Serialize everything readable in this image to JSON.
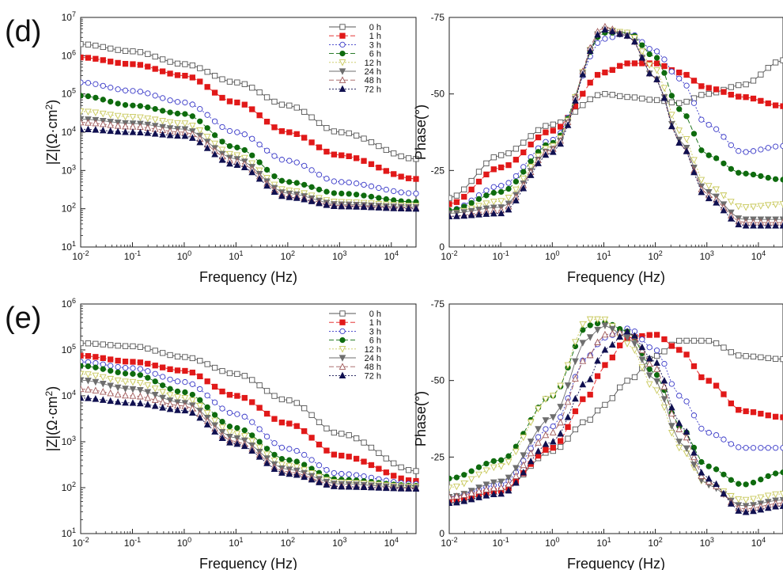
{
  "chart_data": [
    {
      "panel": "(d)",
      "id": "d-bode",
      "type": "scatter",
      "log_x": true,
      "log_y": true,
      "xlabel": "Frequency (Hz)",
      "ylabel": "|Z|(Ω·cm2)",
      "xlim": [
        0.01,
        30000
      ],
      "ylim": [
        10,
        10000000
      ],
      "x_ticks": [
        "10-2",
        "10-1",
        "100",
        "101",
        "102",
        "103",
        "104"
      ],
      "y_ticks": [
        "101",
        "102",
        "103",
        "104",
        "105",
        "106",
        "107"
      ],
      "legend_position": "top-right",
      "x": [
        0.01,
        0.1,
        1,
        10,
        100,
        1000,
        30000
      ],
      "series": [
        {
          "name": "0 h",
          "values": [
            2000000,
            1300000,
            600000,
            200000,
            50000,
            10000,
            2000
          ]
        },
        {
          "name": "1 h",
          "values": [
            900000,
            600000,
            300000,
            60000,
            10000,
            2500,
            600
          ]
        },
        {
          "name": "3 h",
          "values": [
            200000,
            120000,
            60000,
            10000,
            1800,
            500,
            250
          ]
        },
        {
          "name": "6 h",
          "values": [
            90000,
            50000,
            30000,
            4000,
            500,
            250,
            150
          ]
        },
        {
          "name": "12 h",
          "values": [
            35000,
            25000,
            17000,
            2500,
            300,
            150,
            120
          ]
        },
        {
          "name": "24 h",
          "values": [
            22000,
            17000,
            12000,
            2000,
            250,
            130,
            110
          ]
        },
        {
          "name": "48 h",
          "values": [
            18000,
            14000,
            10000,
            1700,
            220,
            120,
            105
          ]
        },
        {
          "name": "72 h",
          "values": [
            12000,
            10000,
            8000,
            1400,
            200,
            115,
            100
          ]
        }
      ]
    },
    {
      "panel": "",
      "id": "d-phase",
      "type": "scatter",
      "log_x": true,
      "xlabel": "Frequency (Hz)",
      "ylabel": "Phase(°)",
      "xlim": [
        0.01,
        30000
      ],
      "ylim": [
        0,
        -75
      ],
      "x_ticks": [
        "10-2",
        "10-1",
        "100",
        "101",
        "102",
        "103",
        "104"
      ],
      "y_ticks": [
        "0",
        "-25",
        "-50",
        "-75"
      ],
      "x": [
        0.01,
        0.1,
        1,
        10,
        30,
        100,
        300,
        1000,
        5000,
        30000
      ],
      "series": [
        {
          "name": "0 h",
          "values": [
            -16,
            -30,
            -40,
            -50,
            -49,
            -48,
            -47,
            -50,
            -53,
            -61
          ]
        },
        {
          "name": "1 h",
          "values": [
            -14,
            -26,
            -38,
            -57,
            -60,
            -60,
            -57,
            -52,
            -49,
            -46
          ]
        },
        {
          "name": "3 h",
          "values": [
            -12,
            -20,
            -35,
            -68,
            -70,
            -64,
            -55,
            -40,
            -31,
            -33
          ]
        },
        {
          "name": "6 h",
          "values": [
            -12,
            -18,
            -34,
            -70,
            -70,
            -62,
            -45,
            -30,
            -24,
            -22
          ]
        },
        {
          "name": "12 h",
          "values": [
            -11,
            -15,
            -33,
            -71,
            -70,
            -58,
            -38,
            -20,
            -13,
            -14
          ]
        },
        {
          "name": "24 h",
          "values": [
            -11,
            -13,
            -32,
            -71,
            -69,
            -55,
            -35,
            -18,
            -9,
            -9
          ]
        },
        {
          "name": "48 h",
          "values": [
            -10,
            -12,
            -32,
            -72,
            -69,
            -55,
            -34,
            -17,
            -8,
            -8
          ]
        },
        {
          "name": "72 h",
          "values": [
            -10,
            -11,
            -31,
            -71,
            -69,
            -55,
            -34,
            -16,
            -7,
            -7
          ]
        }
      ]
    },
    {
      "panel": "(e)",
      "id": "e-bode",
      "type": "scatter",
      "log_x": true,
      "log_y": true,
      "xlabel": "Frequency (Hz)",
      "ylabel": "|Z|(Ω·cm2)",
      "xlim": [
        0.01,
        30000
      ],
      "ylim": [
        10,
        1000000
      ],
      "x_ticks": [
        "10-2",
        "10-1",
        "100",
        "101",
        "102",
        "103",
        "104"
      ],
      "y_ticks": [
        "101",
        "102",
        "103",
        "104",
        "105",
        "106"
      ],
      "legend_position": "top-right",
      "x": [
        0.01,
        0.1,
        1,
        10,
        100,
        1000,
        30000
      ],
      "series": [
        {
          "name": "0 h",
          "values": [
            140000,
            120000,
            70000,
            30000,
            8000,
            1500,
            230
          ]
        },
        {
          "name": "1 h",
          "values": [
            75000,
            55000,
            35000,
            10000,
            2500,
            500,
            140
          ]
        },
        {
          "name": "3 h",
          "values": [
            55000,
            40000,
            20000,
            4000,
            700,
            200,
            120
          ]
        },
        {
          "name": "6 h",
          "values": [
            45000,
            30000,
            12000,
            2000,
            400,
            150,
            110
          ]
        },
        {
          "name": "12 h",
          "values": [
            30000,
            20000,
            9000,
            1500,
            300,
            130,
            105
          ]
        },
        {
          "name": "24 h",
          "values": [
            22000,
            14000,
            7000,
            1200,
            250,
            120,
            100
          ]
        },
        {
          "name": "48 h",
          "values": [
            14000,
            10000,
            6000,
            1000,
            220,
            110,
            98
          ]
        },
        {
          "name": "72 h",
          "values": [
            9000,
            7000,
            4800,
            900,
            200,
            105,
            95
          ]
        }
      ]
    },
    {
      "panel": "",
      "id": "e-phase",
      "type": "scatter",
      "log_x": true,
      "xlabel": "Frequency (Hz)",
      "ylabel": "Phase(°)",
      "xlim": [
        0.01,
        30000
      ],
      "ylim": [
        0,
        -75
      ],
      "x_ticks": [
        "10-2",
        "10-1",
        "100",
        "101",
        "102",
        "103",
        "104"
      ],
      "y_ticks": [
        "0",
        "-25",
        "-50",
        "-75"
      ],
      "x": [
        0.01,
        0.1,
        1,
        5,
        10,
        30,
        100,
        300,
        1000,
        5000,
        30000
      ],
      "series": [
        {
          "name": "0 h",
          "values": [
            -10,
            -14,
            -27,
            -37,
            -42,
            -50,
            -58,
            -63,
            -63,
            -58,
            -57
          ]
        },
        {
          "name": "1 h",
          "values": [
            -11,
            -14,
            -28,
            -45,
            -55,
            -64,
            -65,
            -60,
            -50,
            -40,
            -38
          ]
        },
        {
          "name": "3 h",
          "values": [
            -12,
            -16,
            -35,
            -58,
            -64,
            -67,
            -60,
            -45,
            -33,
            -28,
            -28
          ]
        },
        {
          "name": "6 h",
          "values": [
            -18,
            -24,
            -45,
            -68,
            -69,
            -66,
            -52,
            -35,
            -22,
            -16,
            -20
          ]
        },
        {
          "name": "12 h",
          "values": [
            -15,
            -22,
            -45,
            -70,
            -70,
            -62,
            -47,
            -28,
            -16,
            -11,
            -13
          ]
        },
        {
          "name": "24 h",
          "values": [
            -12,
            -17,
            -38,
            -64,
            -68,
            -64,
            -50,
            -30,
            -16,
            -9,
            -11
          ]
        },
        {
          "name": "48 h",
          "values": [
            -12,
            -15,
            -33,
            -58,
            -65,
            -66,
            -54,
            -34,
            -17,
            -8,
            -10
          ]
        },
        {
          "name": "72 h",
          "values": [
            -10,
            -13,
            -30,
            -50,
            -60,
            -66,
            -56,
            -36,
            -18,
            -7,
            -9
          ]
        }
      ]
    }
  ],
  "series_style": [
    {
      "name": "0 h",
      "color": "#555555",
      "marker": "square-open",
      "dash": "none"
    },
    {
      "name": "1 h",
      "color": "#e11919",
      "marker": "square",
      "dash": "6,3"
    },
    {
      "name": "3 h",
      "color": "#3a3ac8",
      "marker": "circle-open",
      "dash": "2,2"
    },
    {
      "name": "6 h",
      "color": "#0e6b0e",
      "marker": "circle",
      "dash": "6,3"
    },
    {
      "name": "12 h",
      "color": "#c8c85a",
      "marker": "triangle-down-open",
      "dash": "2,2"
    },
    {
      "name": "24 h",
      "color": "#6e6e6e",
      "marker": "triangle-down",
      "dash": "none"
    },
    {
      "name": "48 h",
      "color": "#a05a5a",
      "marker": "triangle-up-open",
      "dash": "6,3"
    },
    {
      "name": "72 h",
      "color": "#101050",
      "marker": "triangle-up",
      "dash": "2,2"
    }
  ]
}
